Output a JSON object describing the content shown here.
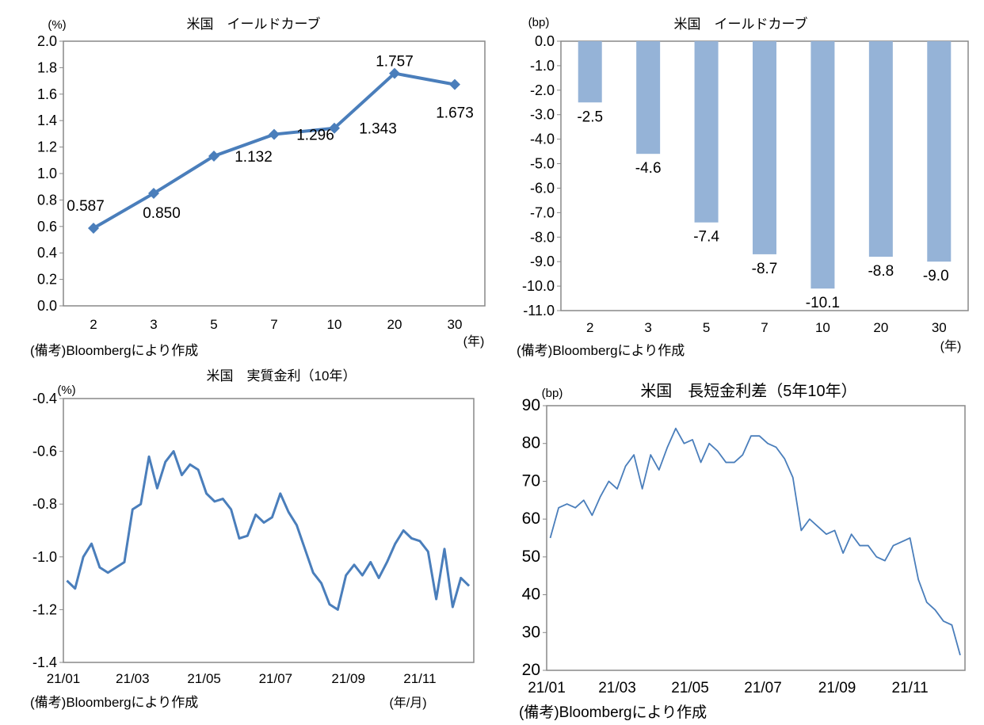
{
  "chart_data": [
    {
      "type": "line",
      "title": "米国　イールドカーブ",
      "ylabel": "(%)",
      "xlabel": "(年)",
      "note": "(備考)Bloombergにより作成",
      "categories": [
        "2",
        "3",
        "5",
        "7",
        "10",
        "20",
        "30"
      ],
      "values": [
        0.587,
        0.85,
        1.132,
        1.296,
        1.343,
        1.757,
        1.673
      ],
      "data_labels": [
        "0.587",
        "0.850",
        "1.132",
        "1.296",
        "1.343",
        "1.757",
        "1.673"
      ],
      "ylim": [
        0,
        2.0
      ],
      "yticks": [
        "0.0",
        "0.2",
        "0.4",
        "0.6",
        "0.8",
        "1.0",
        "1.2",
        "1.4",
        "1.6",
        "1.8",
        "2.0"
      ],
      "marker": "diamond",
      "color": "#4a7ebb"
    },
    {
      "type": "bar",
      "title": "米国　イールドカーブ",
      "ylabel": "(bp)",
      "xlabel": "(年)",
      "note": "(備考)Bloombergにより作成",
      "categories": [
        "2",
        "3",
        "5",
        "7",
        "10",
        "20",
        "30"
      ],
      "values": [
        -2.5,
        -4.6,
        -7.4,
        -8.7,
        -10.1,
        -8.8,
        -9.0
      ],
      "data_labels": [
        "-2.5",
        "-4.6",
        "-7.4",
        "-8.7",
        "-10.1",
        "-8.8",
        "-9.0"
      ],
      "ylim": [
        -11.0,
        0.0
      ],
      "yticks": [
        "0.0",
        "-1.0",
        "-2.0",
        "-3.0",
        "-4.0",
        "-5.0",
        "-6.0",
        "-7.0",
        "-8.0",
        "-9.0",
        "-10.0",
        "-11.0"
      ],
      "color": "#95b3d7"
    },
    {
      "type": "line",
      "title": "米国　実質金利（10年）",
      "ylabel": "(%)",
      "xlabel": "(年/月)",
      "note": "(備考)Bloombergにより作成",
      "x_start": "2021-01-04",
      "x_step_days": 7,
      "values": [
        -1.09,
        -1.12,
        -1.0,
        -0.95,
        -1.04,
        -1.06,
        -1.04,
        -1.02,
        -0.82,
        -0.8,
        -0.62,
        -0.74,
        -0.64,
        -0.6,
        -0.69,
        -0.65,
        -0.67,
        -0.76,
        -0.79,
        -0.78,
        -0.82,
        -0.93,
        -0.92,
        -0.84,
        -0.87,
        -0.85,
        -0.76,
        -0.83,
        -0.88,
        -0.97,
        -1.06,
        -1.1,
        -1.18,
        -1.2,
        -1.07,
        -1.03,
        -1.07,
        -1.02,
        -1.08,
        -1.02,
        -0.95,
        -0.9,
        -0.93,
        -0.94,
        -0.98,
        -1.16,
        -0.97,
        -1.19,
        -1.08,
        -1.11
      ],
      "ylim": [
        -1.4,
        -0.4
      ],
      "yticks": [
        "-1.4",
        "-1.2",
        "-1.0",
        "-0.8",
        "-0.6",
        "-0.4"
      ],
      "xticks": [
        "21/01",
        "21/03",
        "21/05",
        "21/07",
        "21/09",
        "21/11"
      ],
      "color": "#4a7ebb"
    },
    {
      "type": "line",
      "title": "米国　長短金利差（5年10年）",
      "ylabel": "(bp)",
      "note": "(備考)Bloombergにより作成",
      "x_start": "2021-01-04",
      "x_step_days": 7,
      "values": [
        55,
        63,
        64,
        63,
        65,
        61,
        66,
        70,
        68,
        74,
        77,
        68,
        77,
        73,
        79,
        84,
        80,
        81,
        75,
        80,
        78,
        75,
        75,
        77,
        82,
        82,
        80,
        79,
        76,
        71,
        57,
        60,
        58,
        56,
        57,
        51,
        56,
        53,
        53,
        50,
        49,
        53,
        54,
        55,
        44,
        38,
        36,
        33,
        32,
        24
      ],
      "ylim": [
        20,
        90
      ],
      "yticks": [
        "20",
        "30",
        "40",
        "50",
        "60",
        "70",
        "80",
        "90"
      ],
      "xticks": [
        "21/01",
        "21/03",
        "21/05",
        "21/07",
        "21/09",
        "21/11"
      ],
      "color": "#4a7ebb"
    }
  ]
}
